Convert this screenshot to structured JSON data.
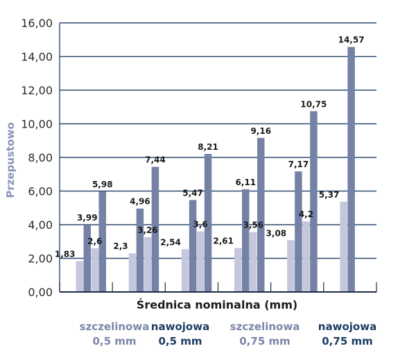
{
  "chart_data": {
    "type": "bar",
    "ylabel": "Przepustowo",
    "xlabel": "Średnica nominalna (mm)",
    "ylim": [
      0,
      16
    ],
    "yticks": [
      "0,00",
      "2,00",
      "4,00",
      "6,00",
      "8,00",
      "10,00",
      "12,00",
      "14,00",
      "16,00"
    ],
    "ytick_values": [
      0,
      2,
      4,
      6,
      8,
      10,
      12,
      14,
      16
    ],
    "grid": true,
    "groups": [
      {
        "bars": [
          {
            "value": 1.83,
            "label": "1,83",
            "series": "light"
          },
          {
            "value": 3.99,
            "label": "3,99",
            "series": "dark"
          },
          {
            "value": 2.6,
            "label": "2,6",
            "series": "light"
          },
          {
            "value": 5.98,
            "label": "5,98",
            "series": "dark"
          }
        ]
      },
      {
        "bars": [
          {
            "value": 2.3,
            "label": "2,3",
            "series": "light"
          },
          {
            "value": 4.96,
            "label": "4,96",
            "series": "dark"
          },
          {
            "value": 3.26,
            "label": "3,26",
            "series": "light"
          },
          {
            "value": 7.44,
            "label": "7,44",
            "series": "dark"
          }
        ]
      },
      {
        "bars": [
          {
            "value": 2.54,
            "label": "2,54",
            "series": "light"
          },
          {
            "value": 5.47,
            "label": "5,47",
            "series": "dark"
          },
          {
            "value": 3.6,
            "label": "3,6",
            "series": "light"
          },
          {
            "value": 8.21,
            "label": "8,21",
            "series": "dark"
          }
        ]
      },
      {
        "bars": [
          {
            "value": 2.61,
            "label": "2,61",
            "series": "light"
          },
          {
            "value": 6.11,
            "label": "6,11",
            "series": "dark"
          },
          {
            "value": 3.56,
            "label": "3,56",
            "series": "light"
          },
          {
            "value": 9.16,
            "label": "9,16",
            "series": "dark"
          }
        ]
      },
      {
        "bars": [
          {
            "value": 3.08,
            "label": "3,08",
            "series": "light"
          },
          {
            "value": 7.17,
            "label": "7,17",
            "series": "dark"
          },
          {
            "value": 4.2,
            "label": "4,2",
            "series": "light"
          },
          {
            "value": 10.75,
            "label": "10,75",
            "series": "dark"
          }
        ]
      },
      {
        "bars": [
          {
            "value": 5.37,
            "label": "5,37",
            "series": "light"
          },
          {
            "value": 14.57,
            "label": "14,57",
            "series": "dark"
          }
        ]
      }
    ],
    "colors": {
      "light": "#c5c8dc",
      "dark": "#7681a6",
      "grid": "#2b4a6f",
      "axis": "#1c2b44"
    }
  },
  "legend": [
    {
      "line1": "szczelinowa",
      "line2": "0,5 mm",
      "color": "#7c86a8"
    },
    {
      "line1": "nawojowa",
      "line2": "0,5 mm",
      "color": "#1d3d63"
    },
    {
      "line1": "szczelinowa",
      "line2": "0,75 mm",
      "color": "#7c86a8"
    },
    {
      "line1": "nawojowa",
      "line2": "0,75 mm",
      "color": "#1d3d63"
    }
  ]
}
